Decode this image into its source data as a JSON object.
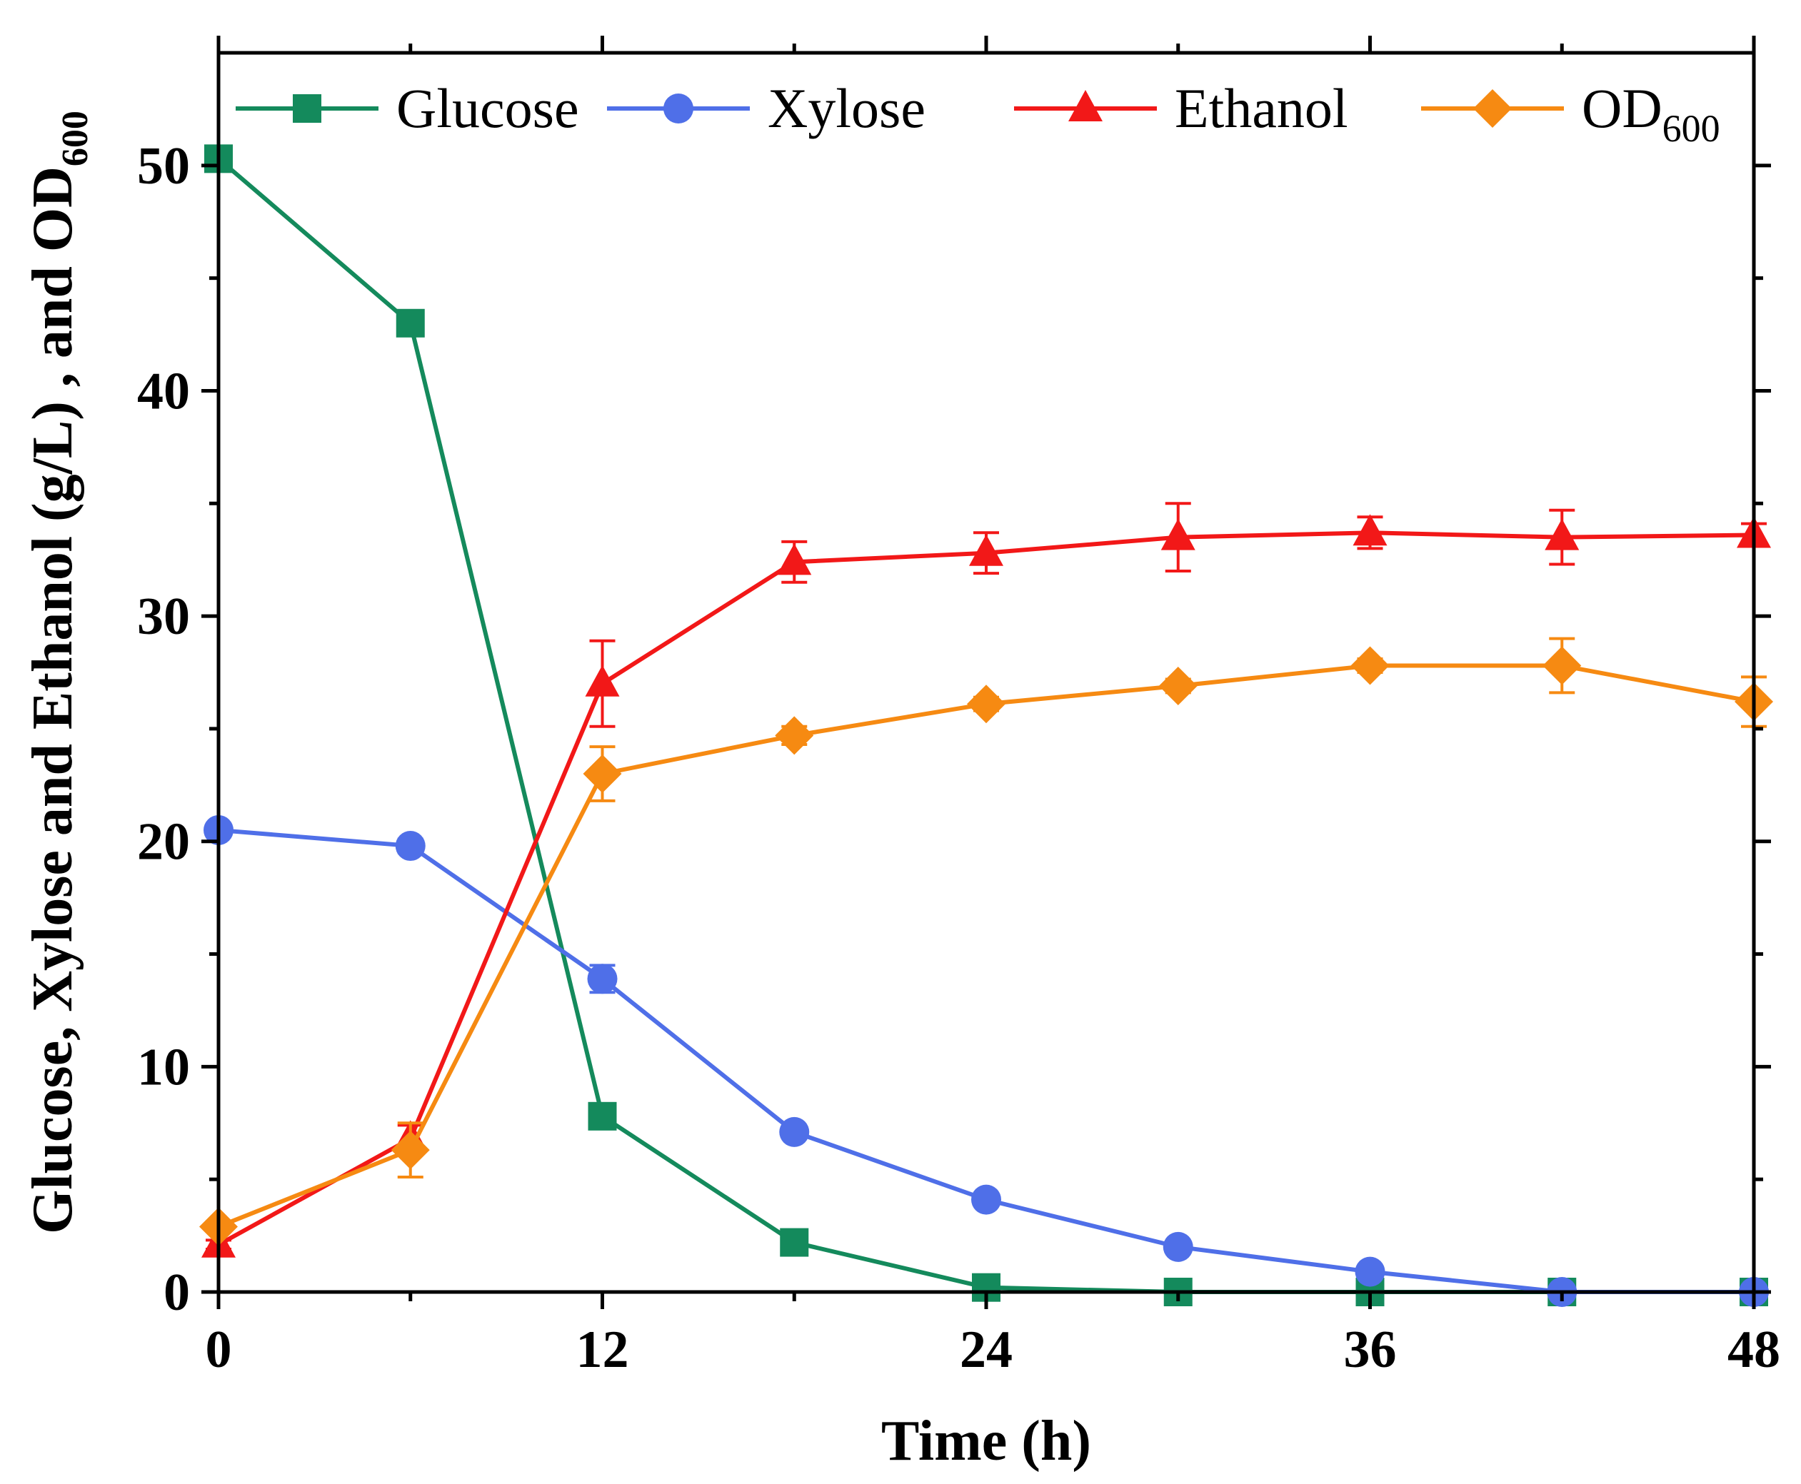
{
  "chart_data": {
    "type": "line",
    "title": "",
    "xlabel": "Time (h)",
    "ylabel": {
      "main": "Glucose, Xylose and Ethanol (g/L) , and OD",
      "sub": "600"
    },
    "xlim": [
      0,
      48
    ],
    "ylim": [
      0,
      55
    ],
    "x_ticks": [
      "0",
      "12",
      "24",
      "36",
      "48"
    ],
    "y_ticks": [
      "0",
      "10",
      "20",
      "30",
      "40",
      "50"
    ],
    "x_minor_step": 6,
    "y_minor_step": 5,
    "grid": false,
    "legend_position": "top",
    "series": [
      {
        "name": "Glucose",
        "subscript": "",
        "color": "#148A5C",
        "marker": "square",
        "x": [
          0,
          6,
          12,
          18,
          24,
          30,
          36,
          42,
          48
        ],
        "values": [
          50.3,
          43.0,
          7.8,
          2.2,
          0.2,
          0.0,
          0.0,
          0.0,
          0.0
        ],
        "errors": [
          0.3,
          0.5,
          0.3,
          0.2,
          0.1,
          0.0,
          0.0,
          0.0,
          0.0
        ]
      },
      {
        "name": "Xylose",
        "subscript": "",
        "color": "#4F6FE8",
        "marker": "circle",
        "x": [
          0,
          6,
          12,
          18,
          24,
          30,
          36,
          42,
          48
        ],
        "values": [
          20.5,
          19.8,
          13.9,
          7.1,
          4.1,
          2.0,
          0.9,
          0.0,
          0.0
        ],
        "errors": [
          0.2,
          0.3,
          0.6,
          0.2,
          0.2,
          0.1,
          0.1,
          0.0,
          0.0
        ]
      },
      {
        "name": "Ethanol",
        "subscript": "",
        "color": "#F21818",
        "marker": "triangle",
        "x": [
          0,
          6,
          12,
          18,
          24,
          30,
          36,
          42,
          48
        ],
        "values": [
          2.1,
          6.8,
          27.0,
          32.4,
          32.8,
          33.5,
          33.7,
          33.5,
          33.6
        ],
        "errors": [
          0.2,
          0.6,
          1.9,
          0.9,
          0.9,
          1.5,
          0.7,
          1.2,
          0.5
        ]
      },
      {
        "name": "OD",
        "subscript": "600",
        "color": "#F68A12",
        "marker": "diamond",
        "x": [
          0,
          6,
          12,
          18,
          24,
          30,
          36,
          42,
          48
        ],
        "values": [
          2.9,
          6.3,
          23.0,
          24.7,
          26.1,
          26.9,
          27.8,
          27.8,
          26.2
        ],
        "errors": [
          0.2,
          1.2,
          1.2,
          0.4,
          0.3,
          0.3,
          0.3,
          1.2,
          1.1
        ]
      }
    ]
  }
}
